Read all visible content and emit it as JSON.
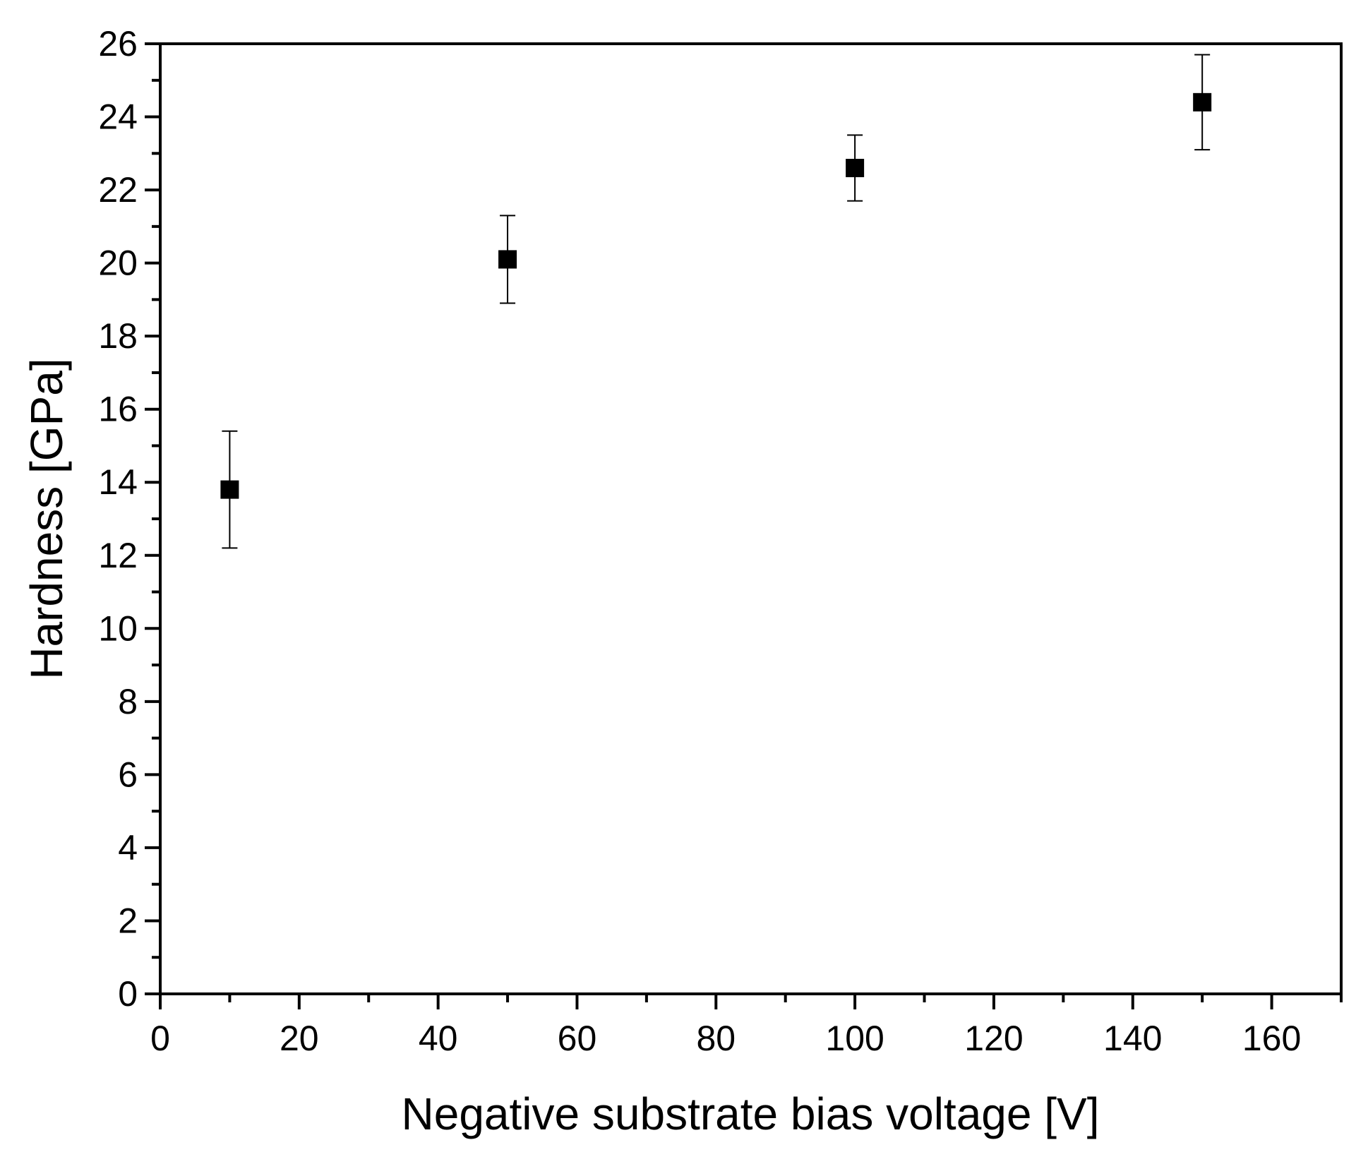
{
  "chart_data": {
    "type": "scatter",
    "title": "",
    "xlabel": "Negative substrate bias voltage [V]",
    "ylabel": "Hardness [GPa]",
    "xlim": [
      0,
      170
    ],
    "ylim": [
      0,
      26
    ],
    "x_ticks": [
      0,
      20,
      40,
      60,
      80,
      100,
      120,
      140,
      160
    ],
    "x_minor_step": 10,
    "y_ticks": [
      0,
      2,
      4,
      6,
      8,
      10,
      12,
      14,
      16,
      18,
      20,
      22,
      24,
      26
    ],
    "y_minor_step": 1,
    "grid": false,
    "legend": "none",
    "marker": "filled-square",
    "color": "#000000",
    "series": [
      {
        "x": [
          10,
          50,
          100,
          150
        ],
        "y": [
          13.8,
          20.1,
          22.6,
          24.4
        ],
        "error_low": [
          12.2,
          18.9,
          21.7,
          23.1
        ],
        "error_high": [
          15.4,
          21.3,
          23.5,
          25.7
        ]
      }
    ]
  }
}
